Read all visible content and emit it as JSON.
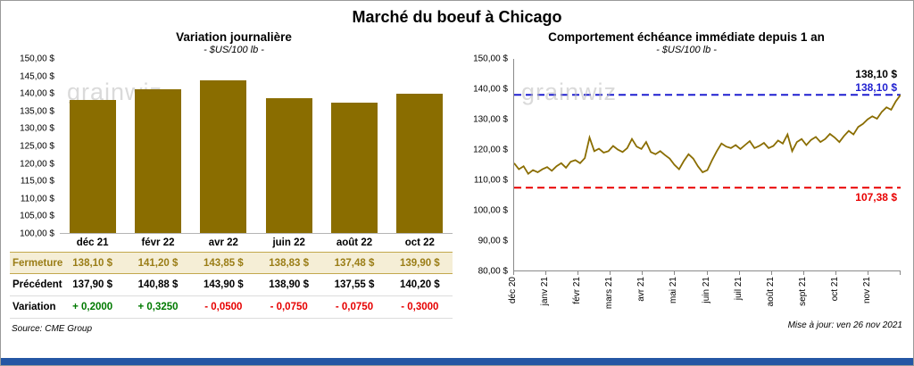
{
  "header": {
    "title": "Marché du boeuf à Chicago"
  },
  "watermark": "grainwiz",
  "colors": {
    "bar": "#8a6d00",
    "line": "#8a6d00",
    "ref_high": "#1f1fd0",
    "ref_low": "#e80000",
    "positive": "#007a00",
    "negative": "#e60000",
    "closing_row_bg": "#f5eed6",
    "closing_row_text": "#9a7d16",
    "bottom_bar": "#2456a4"
  },
  "chart_data": [
    {
      "type": "bar",
      "title": "Variation journalière",
      "subtitle": "- $US/100 lb -",
      "categories": [
        "déc 21",
        "févr 22",
        "avr 22",
        "juin 22",
        "août 22",
        "oct 22"
      ],
      "values": [
        138.1,
        141.2,
        143.85,
        138.83,
        137.48,
        139.9
      ],
      "ylim": [
        100,
        150
      ],
      "ytick_step": 5,
      "grid": false,
      "legend": "none"
    },
    {
      "type": "line",
      "title": "Comportement échéance immédiate depuis 1 an",
      "subtitle": "- $US/100 lb -",
      "x_labels": [
        "déc 20",
        "janv 21",
        "févr 21",
        "mars 21",
        "avr 21",
        "mai 21",
        "juin 21",
        "juil 21",
        "août 21",
        "sept 21",
        "oct 21",
        "nov 21"
      ],
      "values": [
        115.5,
        113.5,
        114.5,
        112.0,
        113.2,
        112.5,
        113.5,
        114.2,
        113.0,
        114.5,
        115.5,
        114.0,
        116.0,
        116.5,
        115.5,
        117.2,
        124.0,
        119.5,
        120.3,
        119.0,
        119.5,
        121.2,
        120.0,
        119.2,
        120.5,
        123.5,
        121.0,
        120.2,
        122.5,
        119.2,
        118.5,
        119.5,
        118.2,
        117.0,
        115.0,
        113.5,
        116.2,
        118.5,
        117.0,
        114.5,
        112.5,
        113.2,
        116.5,
        119.5,
        122.0,
        121.0,
        120.5,
        121.5,
        120.2,
        121.5,
        122.8,
        120.5,
        121.2,
        122.2,
        120.5,
        121.2,
        123.0,
        122.0,
        125.0,
        119.5,
        122.5,
        123.5,
        121.5,
        123.2,
        124.2,
        122.5,
        123.5,
        125.2,
        124.0,
        122.5,
        124.5,
        126.2,
        125.0,
        127.5,
        128.5,
        130.0,
        131.0,
        130.2,
        132.5,
        134.0,
        133.2,
        136.0,
        138.1
      ],
      "ylim": [
        80,
        150
      ],
      "ytick_step": 10,
      "grid": false,
      "legend": "none",
      "reference_lines": [
        {
          "value": 138.1,
          "label": "138,10 $",
          "color": "#1f1fd0"
        },
        {
          "value": 107.38,
          "label": "107,38 $",
          "color": "#e80000"
        }
      ],
      "annotation_top": "138,10 $"
    }
  ],
  "table": {
    "rows": [
      {
        "label": "Fermeture",
        "style": "fermeture",
        "values": [
          "138,10  $",
          "141,20  $",
          "143,85  $",
          "138,83  $",
          "137,48  $",
          "139,90  $"
        ]
      },
      {
        "label": "Précédent",
        "style": "precedent",
        "values": [
          "137,90  $",
          "140,88  $",
          "143,90  $",
          "138,90  $",
          "137,55  $",
          "140,20  $"
        ]
      },
      {
        "label": "Variation",
        "style": "variation",
        "values": [
          "+ 0,2000",
          "+ 0,3250",
          "- 0,0500",
          "- 0,0750",
          "- 0,0750",
          "- 0,3000"
        ]
      }
    ]
  },
  "footer": {
    "source": "Source: CME Group",
    "updated": "Mise à jour: ven 26 nov 2021"
  }
}
